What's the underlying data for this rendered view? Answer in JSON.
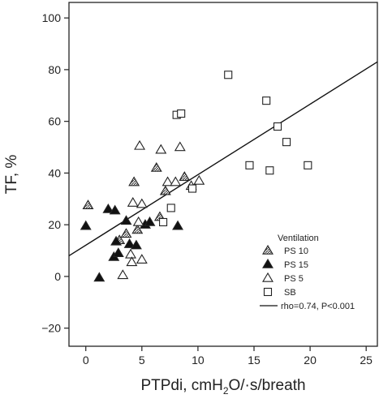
{
  "chart_data": {
    "type": "scatter",
    "xlabel": "PTPdi, cmH",
    "xlabel_sub": "2",
    "xlabel_rest": "O/·s/breath",
    "ylabel": "TF, %",
    "xlim": [
      -1.5,
      26
    ],
    "ylim": [
      -27,
      106
    ],
    "x_ticks": [
      0,
      5,
      10,
      15,
      20,
      25
    ],
    "y_ticks": [
      -20,
      0,
      20,
      40,
      60,
      80,
      100
    ],
    "grid": false,
    "legend": {
      "title": "Ventilation",
      "placement": "bottom-right",
      "entries": [
        {
          "label": "PS 10",
          "marker": "triangle-hatched"
        },
        {
          "label": "PS 15",
          "marker": "triangle-filled"
        },
        {
          "label": "PS 5",
          "marker": "triangle-open"
        },
        {
          "label": "SB",
          "marker": "square-open"
        },
        {
          "label": "rho=0.74, P<0.001",
          "marker": "line"
        }
      ]
    },
    "series": [
      {
        "marker": "triangle-hatched",
        "points": [
          [
            0.2,
            27.5
          ],
          [
            3.0,
            14
          ],
          [
            3.6,
            16.5
          ],
          [
            4.3,
            36.5
          ],
          [
            4.6,
            18
          ],
          [
            6.3,
            42
          ],
          [
            6.6,
            23
          ],
          [
            7.1,
            33
          ],
          [
            8.8,
            38.5
          ]
        ]
      },
      {
        "marker": "triangle-filled",
        "points": [
          [
            0.0,
            19.5
          ],
          [
            1.2,
            -0.5
          ],
          [
            2.0,
            26
          ],
          [
            2.6,
            25.5
          ],
          [
            2.5,
            7.5
          ],
          [
            2.7,
            13.5
          ],
          [
            2.9,
            9
          ],
          [
            3.6,
            21.5
          ],
          [
            3.9,
            12.5
          ],
          [
            4.5,
            12
          ],
          [
            5.3,
            20
          ],
          [
            5.7,
            21
          ],
          [
            8.2,
            19.5
          ]
        ]
      },
      {
        "marker": "triangle-open",
        "points": [
          [
            3.3,
            0.5
          ],
          [
            4.0,
            8.5
          ],
          [
            4.1,
            5.5
          ],
          [
            4.2,
            28.5
          ],
          [
            4.8,
            50.5
          ],
          [
            4.7,
            21
          ],
          [
            5.0,
            6.5
          ],
          [
            5.0,
            28
          ],
          [
            6.7,
            49
          ],
          [
            7.3,
            36.5
          ],
          [
            8.0,
            36.5
          ],
          [
            8.4,
            50
          ],
          [
            9.4,
            35
          ],
          [
            10.1,
            37
          ]
        ]
      },
      {
        "marker": "square-open",
        "points": [
          [
            6.9,
            21
          ],
          [
            7.6,
            26.5
          ],
          [
            8.1,
            62.5
          ],
          [
            8.5,
            63
          ],
          [
            9.5,
            34
          ],
          [
            12.7,
            78
          ],
          [
            14.6,
            43
          ],
          [
            16.1,
            68
          ],
          [
            16.4,
            41
          ],
          [
            17.1,
            58
          ],
          [
            17.9,
            52
          ],
          [
            19.8,
            43
          ]
        ]
      }
    ],
    "fit_line": {
      "x": [
        -1.5,
        26
      ],
      "y": [
        8,
        83
      ]
    }
  }
}
